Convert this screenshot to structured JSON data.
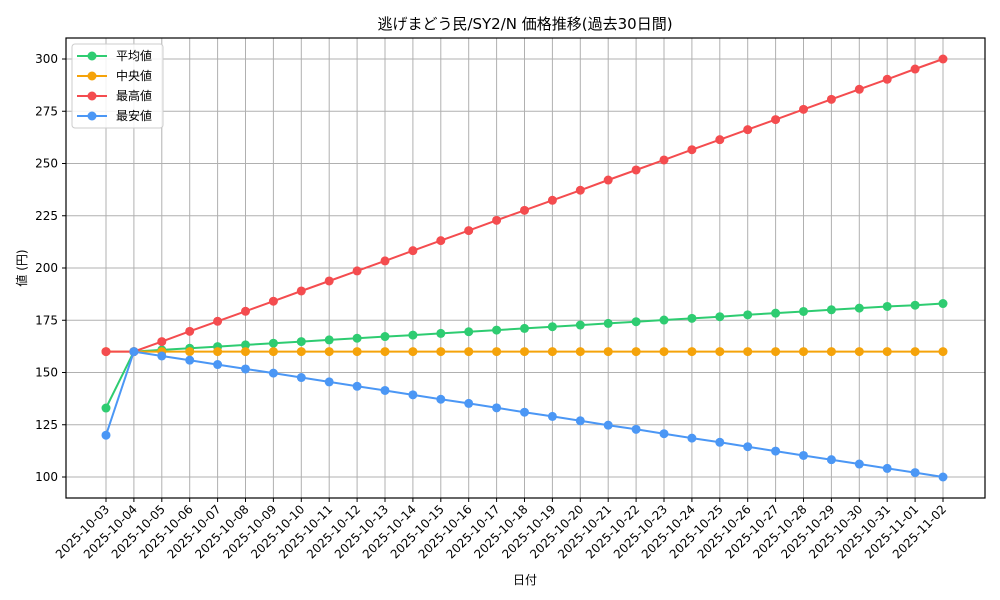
{
  "chart_data": {
    "type": "line",
    "title": "逃げまどう民/SY2/N 価格推移(過去30日間)",
    "xlabel": "日付",
    "ylabel": "値 (円)",
    "ylim": [
      90,
      310
    ],
    "yticks": [
      100,
      125,
      150,
      175,
      200,
      225,
      250,
      275,
      300
    ],
    "grid": true,
    "legend_position": "upper left",
    "x": [
      "2025-10-03",
      "2025-10-04",
      "2025-10-05",
      "2025-10-06",
      "2025-10-07",
      "2025-10-08",
      "2025-10-09",
      "2025-10-10",
      "2025-10-11",
      "2025-10-12",
      "2025-10-13",
      "2025-10-14",
      "2025-10-15",
      "2025-10-16",
      "2025-10-17",
      "2025-10-18",
      "2025-10-19",
      "2025-10-20",
      "2025-10-21",
      "2025-10-22",
      "2025-10-23",
      "2025-10-24",
      "2025-10-25",
      "2025-10-26",
      "2025-10-27",
      "2025-10-28",
      "2025-10-29",
      "2025-10-30",
      "2025-10-31",
      "2025-11-01",
      "2025-11-02"
    ],
    "series": [
      {
        "name": "平均値",
        "color": "#2ecc71",
        "values": [
          133,
          160,
          160.8,
          161.6,
          162.4,
          163.2,
          164.0,
          164.8,
          165.6,
          166.4,
          167.2,
          167.9,
          168.7,
          169.5,
          170.3,
          171.1,
          171.9,
          172.7,
          173.5,
          174.3,
          175.1,
          175.9,
          176.7,
          177.6,
          178.4,
          179.2,
          180.0,
          180.8,
          181.6,
          182.2,
          183
        ]
      },
      {
        "name": "中央値",
        "color": "#f5a30a",
        "values": [
          160,
          160,
          160,
          160,
          160,
          160,
          160,
          160,
          160,
          160,
          160,
          160,
          160,
          160,
          160,
          160,
          160,
          160,
          160,
          160,
          160,
          160,
          160,
          160,
          160,
          160,
          160,
          160,
          160,
          160,
          160
        ]
      },
      {
        "name": "最高値",
        "color": "#f44c4f",
        "values": [
          160,
          160,
          164.8,
          169.7,
          174.5,
          179.3,
          184.1,
          189.0,
          193.8,
          198.6,
          203.4,
          208.3,
          213.1,
          217.9,
          222.8,
          227.6,
          232.4,
          237.2,
          242.1,
          246.9,
          251.7,
          256.6,
          261.4,
          266.2,
          271.0,
          275.9,
          280.7,
          285.5,
          290.3,
          295.2,
          300
        ]
      },
      {
        "name": "最安値",
        "color": "#4b97f5",
        "values": [
          120,
          160,
          157.9,
          155.9,
          153.8,
          151.7,
          149.7,
          147.6,
          145.5,
          143.4,
          141.4,
          139.3,
          137.2,
          135.2,
          133.1,
          131.0,
          129.0,
          126.9,
          124.8,
          122.8,
          120.7,
          118.6,
          116.6,
          114.5,
          112.4,
          110.3,
          108.3,
          106.2,
          104.1,
          102.1,
          100
        ]
      }
    ]
  }
}
